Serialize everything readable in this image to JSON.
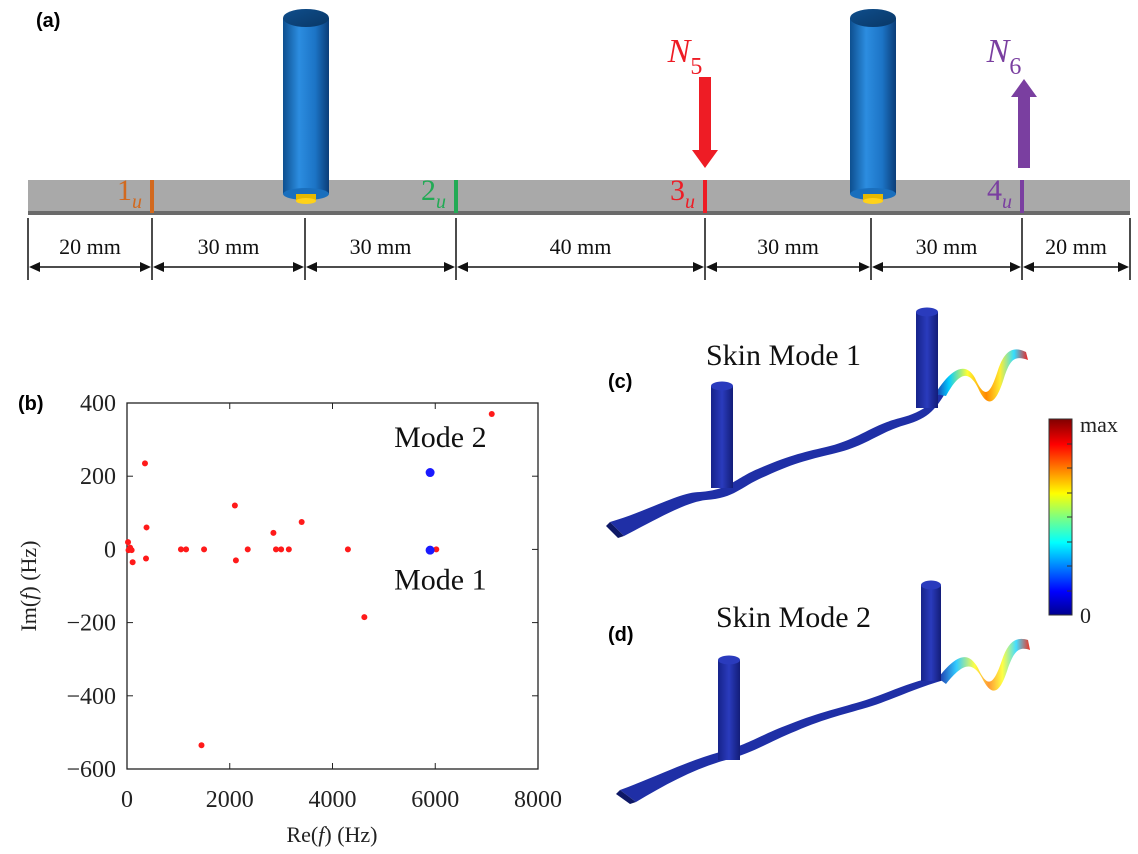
{
  "panel_a": {
    "label": "(a)",
    "sensors": [
      {
        "num": "1",
        "sub": "u",
        "color": "#d2691e"
      },
      {
        "num": "2",
        "sub": "u",
        "color": "#22aa55"
      },
      {
        "num": "3",
        "sub": "u",
        "color": "#ee1c25"
      },
      {
        "num": "4",
        "sub": "u",
        "color": "#7a3fa0"
      }
    ],
    "forces": [
      {
        "base": "N",
        "sub": "5",
        "color": "#ee1c25",
        "direction": "down"
      },
      {
        "base": "N",
        "sub": "6",
        "color": "#7a3fa0",
        "direction": "up"
      }
    ],
    "dimensions": [
      "20 mm",
      "30 mm",
      "30 mm",
      "40 mm",
      "30 mm",
      "30 mm",
      "20 mm"
    ]
  },
  "panel_b": {
    "label": "(b)",
    "chart_data": {
      "type": "scatter",
      "xlabel_pre": "Re(",
      "xlabel_var": "f",
      "xlabel_post": ") (Hz)",
      "ylabel_pre": "Im(",
      "ylabel_var": "f",
      "ylabel_post": ") (Hz)",
      "xlim": [
        0,
        8000
      ],
      "ylim": [
        -600,
        400
      ],
      "xticks": [
        0,
        2000,
        4000,
        6000,
        8000
      ],
      "yticks": [
        -600,
        -400,
        -200,
        0,
        200,
        400
      ],
      "grid": false,
      "series": [
        {
          "color": "#ff1a1a",
          "points": [
            [
              20,
              20
            ],
            [
              30,
              -2
            ],
            [
              60,
              5
            ],
            [
              90,
              -2
            ],
            [
              110,
              -35
            ],
            [
              350,
              235
            ],
            [
              380,
              60
            ],
            [
              370,
              -25
            ],
            [
              1050,
              0
            ],
            [
              1150,
              0
            ],
            [
              1500,
              0
            ],
            [
              2100,
              120
            ],
            [
              2120,
              -30
            ],
            [
              2350,
              0
            ],
            [
              2850,
              45
            ],
            [
              2900,
              0
            ],
            [
              3000,
              0
            ],
            [
              3150,
              0
            ],
            [
              3400,
              75
            ],
            [
              4300,
              0
            ],
            [
              4620,
              -185
            ],
            [
              1450,
              -535
            ],
            [
              6020,
              0
            ],
            [
              7100,
              370
            ]
          ]
        },
        {
          "color": "#1a1aff",
          "points": [
            [
              5900,
              210
            ],
            [
              5900,
              -2
            ]
          ]
        }
      ],
      "annotations": [
        {
          "text": "Mode 2",
          "x": 6100,
          "y": 280
        },
        {
          "text": "Mode 1",
          "x": 6100,
          "y": -110
        }
      ]
    }
  },
  "panel_c": {
    "label": "(c)",
    "title": "Skin Mode 1"
  },
  "panel_d": {
    "label": "(d)",
    "title": "Skin Mode 2"
  },
  "colorbar": {
    "max_label": "max",
    "min_label": "0"
  },
  "colors": {
    "rod": "#1e7fd0",
    "beam": "#a8a8a8",
    "mode_blue": "#1e2fa8"
  }
}
